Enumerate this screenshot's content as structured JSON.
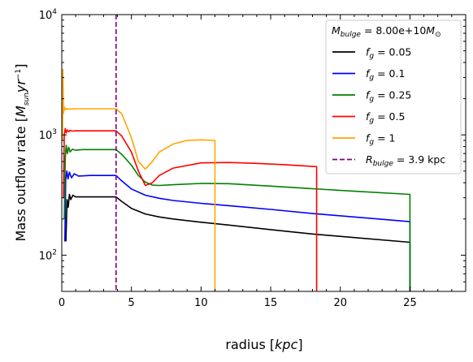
{
  "chart_data": {
    "type": "line",
    "xlabel": "radius [kpc]",
    "ylabel": "Mass outflow rate [M_sun yr^-1]",
    "xlim": [
      0,
      29
    ],
    "ylim": [
      50,
      10000
    ],
    "yscale": "log",
    "x_ticks": [
      "0",
      "5",
      "10",
      "15",
      "20",
      "25"
    ],
    "y_ticks": [
      "10^2",
      "10^3",
      "10^4"
    ],
    "legend_title": "M_bulge = 8.00e+10 M_sun",
    "legend_position": "top-right",
    "bulge_line": {
      "name": "R_bulge = 3.9 kpc",
      "x": 3.9,
      "color": "#800080",
      "style": "dashed"
    },
    "series": [
      {
        "name": "f_g = 0.05",
        "color": "#000000",
        "end_x": 25,
        "x": [
          0.3,
          0.38,
          0.46,
          0.55,
          0.65,
          0.8,
          1.0,
          2.0,
          3.0,
          3.9,
          4.3,
          5,
          6,
          7,
          8,
          10,
          12,
          15,
          18,
          21,
          25
        ],
        "y": [
          130,
          290,
          250,
          320,
          290,
          315,
          305,
          305,
          305,
          305,
          280,
          245,
          220,
          208,
          200,
          188,
          178,
          163,
          150,
          140,
          128
        ]
      },
      {
        "name": "f_g = 0.1",
        "color": "#0000ff",
        "end_x": 25,
        "x": [
          0.22,
          0.28,
          0.36,
          0.45,
          0.55,
          0.7,
          0.9,
          1.2,
          2.0,
          3.0,
          3.9,
          4.3,
          5,
          6,
          7,
          8,
          10,
          12,
          15,
          18,
          21,
          25
        ],
        "y": [
          130,
          420,
          500,
          430,
          490,
          440,
          475,
          455,
          460,
          460,
          460,
          415,
          355,
          315,
          297,
          285,
          270,
          258,
          240,
          222,
          208,
          190
        ]
      },
      {
        "name": "f_g = 0.25",
        "color": "#008000",
        "end_x": 25,
        "x": [
          0.18,
          0.25,
          0.32,
          0.4,
          0.5,
          0.6,
          0.75,
          1.0,
          1.5,
          2.0,
          3.0,
          3.9,
          4.3,
          5,
          5.5,
          6,
          6.5,
          7,
          8,
          10,
          12,
          15,
          18,
          21,
          25
        ],
        "y": [
          200,
          650,
          820,
          700,
          790,
          720,
          760,
          745,
          755,
          755,
          755,
          755,
          690,
          560,
          460,
          405,
          383,
          380,
          385,
          395,
          393,
          375,
          357,
          340,
          320
        ]
      },
      {
        "name": "f_g = 0.5",
        "color": "#ff0000",
        "end_x": 18.3,
        "x": [
          0.12,
          0.18,
          0.25,
          0.32,
          0.4,
          0.5,
          0.6,
          0.75,
          1.0,
          1.5,
          2.0,
          3.0,
          3.9,
          4.3,
          5,
          5.5,
          6,
          6.5,
          7,
          8,
          10,
          12,
          14,
          16,
          18.3
        ],
        "y": [
          300,
          1000,
          1130,
          1040,
          1100,
          1060,
          1090,
          1075,
          1080,
          1080,
          1080,
          1080,
          1080,
          980,
          720,
          500,
          380,
          400,
          460,
          530,
          585,
          590,
          580,
          565,
          545
        ]
      },
      {
        "name": "f_g = 1",
        "color": "#ffa500",
        "end_x": 11,
        "x": [
          0.05,
          0.08,
          0.12,
          0.18,
          0.25,
          0.32,
          0.4,
          0.5,
          0.6,
          0.75,
          1.0,
          1.5,
          2.0,
          3.0,
          3.9,
          4.3,
          5,
          5.5,
          6,
          6.5,
          7,
          8,
          9,
          10,
          11
        ],
        "y": [
          900,
          3500,
          1500,
          1700,
          1620,
          1660,
          1630,
          1650,
          1640,
          1645,
          1650,
          1650,
          1650,
          1650,
          1650,
          1500,
          950,
          600,
          520,
          600,
          720,
          840,
          900,
          910,
          900
        ]
      }
    ]
  }
}
